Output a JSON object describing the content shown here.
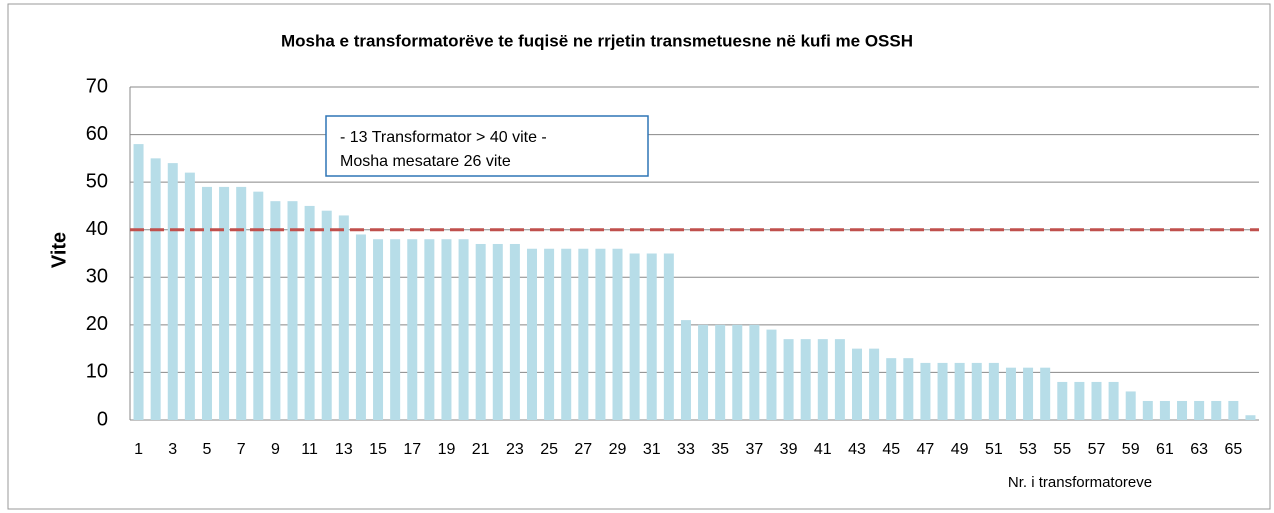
{
  "chart_data": {
    "type": "bar",
    "title": "Mosha e transformatorëve te fuqisë ne rrjetin transmetuesne në  kufi me OSSH",
    "y_label": "Vite",
    "x_label": "Nr. i transformatoreve",
    "annotations": [
      "- 13 Transformator > 40 vite  -",
      "Mosha mesatare 26 vite"
    ],
    "categories": [
      1,
      null,
      3,
      null,
      5,
      null,
      7,
      null,
      9,
      null,
      11,
      null,
      13,
      null,
      15,
      null,
      17,
      null,
      19,
      null,
      21,
      null,
      23,
      null,
      25,
      null,
      27,
      null,
      29,
      null,
      31,
      null,
      33,
      null,
      35,
      null,
      37,
      null,
      39,
      null,
      41,
      null,
      43,
      null,
      45,
      null,
      47,
      null,
      49,
      null,
      51,
      null,
      53,
      null,
      55,
      null,
      57,
      null,
      59,
      null,
      61,
      null,
      63,
      null,
      65,
      null
    ],
    "values": [
      58,
      55,
      54,
      52,
      49,
      49,
      49,
      48,
      46,
      46,
      45,
      44,
      43,
      39,
      38,
      38,
      38,
      38,
      38,
      38,
      37,
      37,
      37,
      36,
      36,
      36,
      36,
      36,
      36,
      35,
      35,
      35,
      21,
      20,
      20,
      20,
      20,
      19,
      17,
      17,
      17,
      17,
      15,
      15,
      13,
      13,
      12,
      12,
      12,
      12,
      12,
      11,
      11,
      11,
      8,
      8,
      8,
      8,
      6,
      4,
      4,
      4,
      4,
      4,
      4,
      1
    ],
    "color": "#b7dde8",
    "reference_line": {
      "value": 40,
      "color": "#c0504d",
      "style": "dashed"
    },
    "ylim": [
      0,
      70
    ],
    "yticks": [
      0,
      10,
      20,
      30,
      40,
      50,
      60,
      70
    ],
    "grid": true
  }
}
